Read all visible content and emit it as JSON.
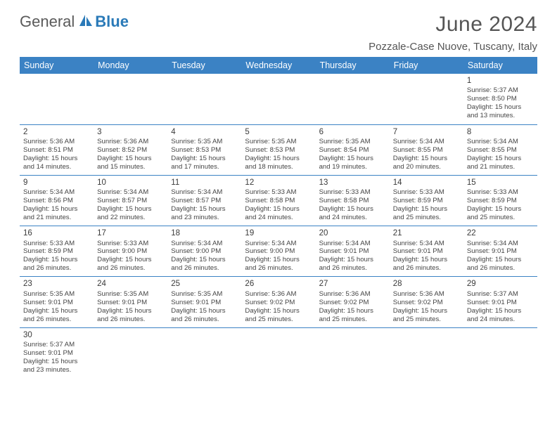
{
  "logo": {
    "part1": "General",
    "part2": "Blue",
    "icon_fill": "#2a7ab8"
  },
  "header": {
    "month_title": "June 2024",
    "location": "Pozzale-Case Nuove, Tuscany, Italy",
    "title_fontsize": 30,
    "title_color": "#555555",
    "location_fontsize": 15
  },
  "colors": {
    "header_bg": "#3b82c4",
    "header_text": "#ffffff",
    "cell_border": "#3b82c4",
    "body_text": "#454545",
    "background": "#ffffff"
  },
  "weekdays": [
    "Sunday",
    "Monday",
    "Tuesday",
    "Wednesday",
    "Thursday",
    "Friday",
    "Saturday"
  ],
  "weeks": [
    [
      null,
      null,
      null,
      null,
      null,
      null,
      {
        "d": "1",
        "sr": "5:37 AM",
        "ss": "8:50 PM",
        "dl": "15 hours and 13 minutes."
      }
    ],
    [
      {
        "d": "2",
        "sr": "5:36 AM",
        "ss": "8:51 PM",
        "dl": "15 hours and 14 minutes."
      },
      {
        "d": "3",
        "sr": "5:36 AM",
        "ss": "8:52 PM",
        "dl": "15 hours and 15 minutes."
      },
      {
        "d": "4",
        "sr": "5:35 AM",
        "ss": "8:53 PM",
        "dl": "15 hours and 17 minutes."
      },
      {
        "d": "5",
        "sr": "5:35 AM",
        "ss": "8:53 PM",
        "dl": "15 hours and 18 minutes."
      },
      {
        "d": "6",
        "sr": "5:35 AM",
        "ss": "8:54 PM",
        "dl": "15 hours and 19 minutes."
      },
      {
        "d": "7",
        "sr": "5:34 AM",
        "ss": "8:55 PM",
        "dl": "15 hours and 20 minutes."
      },
      {
        "d": "8",
        "sr": "5:34 AM",
        "ss": "8:55 PM",
        "dl": "15 hours and 21 minutes."
      }
    ],
    [
      {
        "d": "9",
        "sr": "5:34 AM",
        "ss": "8:56 PM",
        "dl": "15 hours and 21 minutes."
      },
      {
        "d": "10",
        "sr": "5:34 AM",
        "ss": "8:57 PM",
        "dl": "15 hours and 22 minutes."
      },
      {
        "d": "11",
        "sr": "5:34 AM",
        "ss": "8:57 PM",
        "dl": "15 hours and 23 minutes."
      },
      {
        "d": "12",
        "sr": "5:33 AM",
        "ss": "8:58 PM",
        "dl": "15 hours and 24 minutes."
      },
      {
        "d": "13",
        "sr": "5:33 AM",
        "ss": "8:58 PM",
        "dl": "15 hours and 24 minutes."
      },
      {
        "d": "14",
        "sr": "5:33 AM",
        "ss": "8:59 PM",
        "dl": "15 hours and 25 minutes."
      },
      {
        "d": "15",
        "sr": "5:33 AM",
        "ss": "8:59 PM",
        "dl": "15 hours and 25 minutes."
      }
    ],
    [
      {
        "d": "16",
        "sr": "5:33 AM",
        "ss": "8:59 PM",
        "dl": "15 hours and 26 minutes."
      },
      {
        "d": "17",
        "sr": "5:33 AM",
        "ss": "9:00 PM",
        "dl": "15 hours and 26 minutes."
      },
      {
        "d": "18",
        "sr": "5:34 AM",
        "ss": "9:00 PM",
        "dl": "15 hours and 26 minutes."
      },
      {
        "d": "19",
        "sr": "5:34 AM",
        "ss": "9:00 PM",
        "dl": "15 hours and 26 minutes."
      },
      {
        "d": "20",
        "sr": "5:34 AM",
        "ss": "9:01 PM",
        "dl": "15 hours and 26 minutes."
      },
      {
        "d": "21",
        "sr": "5:34 AM",
        "ss": "9:01 PM",
        "dl": "15 hours and 26 minutes."
      },
      {
        "d": "22",
        "sr": "5:34 AM",
        "ss": "9:01 PM",
        "dl": "15 hours and 26 minutes."
      }
    ],
    [
      {
        "d": "23",
        "sr": "5:35 AM",
        "ss": "9:01 PM",
        "dl": "15 hours and 26 minutes."
      },
      {
        "d": "24",
        "sr": "5:35 AM",
        "ss": "9:01 PM",
        "dl": "15 hours and 26 minutes."
      },
      {
        "d": "25",
        "sr": "5:35 AM",
        "ss": "9:01 PM",
        "dl": "15 hours and 26 minutes."
      },
      {
        "d": "26",
        "sr": "5:36 AM",
        "ss": "9:02 PM",
        "dl": "15 hours and 25 minutes."
      },
      {
        "d": "27",
        "sr": "5:36 AM",
        "ss": "9:02 PM",
        "dl": "15 hours and 25 minutes."
      },
      {
        "d": "28",
        "sr": "5:36 AM",
        "ss": "9:02 PM",
        "dl": "15 hours and 25 minutes."
      },
      {
        "d": "29",
        "sr": "5:37 AM",
        "ss": "9:01 PM",
        "dl": "15 hours and 24 minutes."
      }
    ],
    [
      {
        "d": "30",
        "sr": "5:37 AM",
        "ss": "9:01 PM",
        "dl": "15 hours and 23 minutes."
      },
      null,
      null,
      null,
      null,
      null,
      null
    ]
  ],
  "labels": {
    "sunrise": "Sunrise:",
    "sunset": "Sunset:",
    "daylight": "Daylight:"
  }
}
